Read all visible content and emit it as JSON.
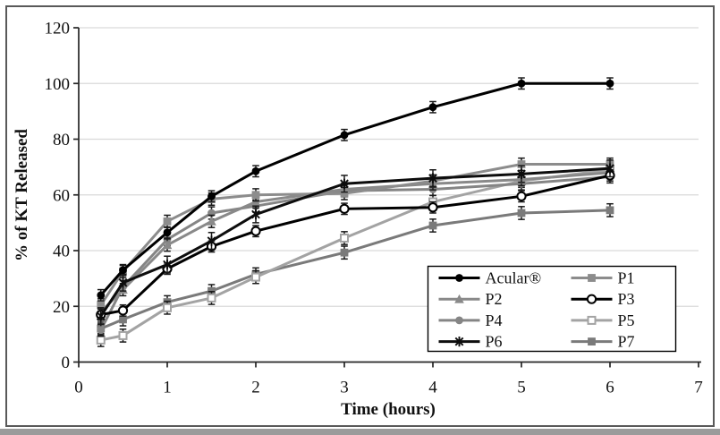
{
  "figure": {
    "background": "#ffffff",
    "border_color": "#595959",
    "bottom_bar_color": "#9b9b9b"
  },
  "chart_data": {
    "type": "line",
    "title": "",
    "xlabel": "Time (hours)",
    "ylabel": "% of KT Released",
    "xlim": [
      0,
      7
    ],
    "ylim": [
      0,
      120
    ],
    "xticks": [
      0,
      1,
      2,
      3,
      4,
      5,
      6,
      7
    ],
    "yticks": [
      0,
      20,
      40,
      60,
      80,
      100,
      120
    ],
    "grid": "horizontal",
    "gridline_color": "#d9d9d9",
    "axis_color": "#262626",
    "error_bar_color": "#1a1a1a",
    "legend_position": "inside-bottom-right",
    "x": [
      0.25,
      0.5,
      1,
      1.5,
      2,
      3,
      4,
      5,
      6
    ],
    "series": [
      {
        "name": "Acular®",
        "color": "#000000",
        "marker": "circle-filled",
        "values": [
          24,
          33,
          46.5,
          59.5,
          68.5,
          81.5,
          91.5,
          100,
          100
        ],
        "error": 2.0,
        "zorder": 8
      },
      {
        "name": "P1",
        "color": "#8c8c8c",
        "marker": "square-filled",
        "values": [
          20.5,
          32.5,
          50.5,
          58.5,
          60,
          60.5,
          65,
          71,
          71
        ],
        "error": 2.2,
        "zorder": 5
      },
      {
        "name": "P2",
        "color": "#898989",
        "marker": "triangle-filled",
        "values": [
          18,
          26,
          42,
          50.5,
          57.5,
          62,
          64,
          65.5,
          68
        ],
        "error": 2.2,
        "zorder": 4
      },
      {
        "name": "P3",
        "color": "#000000",
        "marker": "circle-open",
        "values": [
          17,
          18.5,
          33.5,
          41.5,
          47,
          55,
          55.5,
          59.5,
          67
        ],
        "error": 2.0,
        "zorder": 6
      },
      {
        "name": "P4",
        "color": "#858585",
        "marker": "circle-filled",
        "values": [
          11.5,
          27,
          44,
          53.5,
          56,
          61.5,
          62,
          64,
          66.5
        ],
        "error": 2.2,
        "zorder": 3
      },
      {
        "name": "P5",
        "color": "#a3a3a3",
        "marker": "square-open",
        "values": [
          7.9,
          9.5,
          19.5,
          23,
          30.5,
          44.5,
          57.5,
          65,
          69
        ],
        "error": 2.3,
        "zorder": 2
      },
      {
        "name": "P6",
        "color": "#0d0d0d",
        "marker": "xstar",
        "values": [
          16.5,
          28.5,
          35,
          43.5,
          53,
          64,
          66,
          67.5,
          69.5
        ],
        "error": 3.0,
        "zorder": 7
      },
      {
        "name": "P7",
        "color": "#7a7a7a",
        "marker": "square-filled",
        "values": [
          12,
          15.3,
          21.5,
          25.5,
          31.5,
          39.3,
          49,
          53.5,
          54.5
        ],
        "error": 2.3,
        "zorder": 1
      }
    ]
  }
}
